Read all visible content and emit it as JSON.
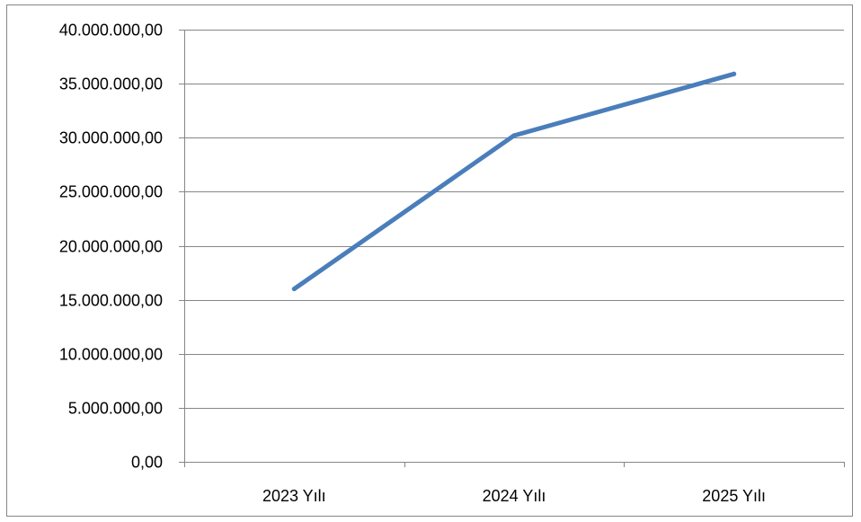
{
  "chart_data": {
    "type": "line",
    "title": "",
    "xlabel": "",
    "ylabel": "",
    "categories": [
      "2023 Yılı",
      "2024 Yılı",
      "2025 Yılı"
    ],
    "series": [
      {
        "values": [
          16000000,
          30200000,
          35900000
        ],
        "color": "#4a7ebb"
      }
    ],
    "ylim": [
      0,
      40000000
    ],
    "y_ticks": [
      0,
      5000000,
      10000000,
      15000000,
      20000000,
      25000000,
      30000000,
      35000000,
      40000000
    ],
    "y_tick_labels": [
      "0,00",
      "5.000.000,00",
      "10.000.000,00",
      "15.000.000,00",
      "20.000.000,00",
      "25.000.000,00",
      "30.000.000,00",
      "35.000.000,00",
      "40.000.000,00"
    ],
    "grid": true,
    "legend": "none",
    "colors": {
      "gridline": "#868686",
      "axis": "#868686",
      "line": "#4a7ebb"
    }
  }
}
